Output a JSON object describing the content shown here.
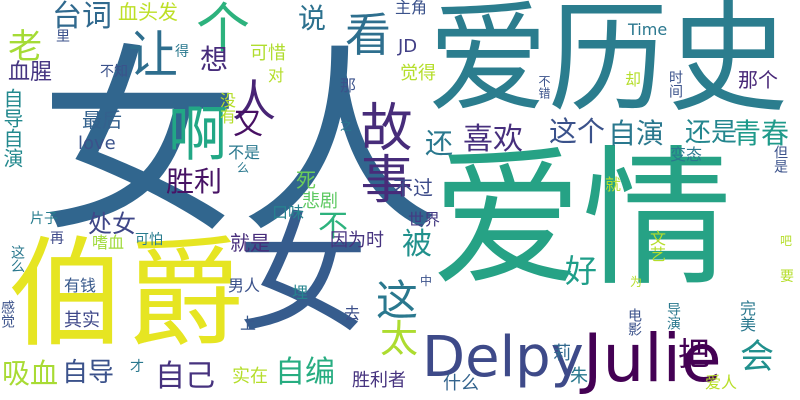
{
  "words": [
    {
      "text": "女人",
      "color": "#31668e",
      "vertical": false
    },
    {
      "text": "爱情",
      "color": "#26a285",
      "vertical": false
    },
    {
      "text": "爱历史",
      "color": "#2b7d8e",
      "vertical": false
    },
    {
      "text": "伯爵",
      "color": "#e6e522",
      "vertical": false
    },
    {
      "text": "女",
      "color": "#365c8d",
      "vertical": false
    },
    {
      "text": "Julie",
      "color": "#440154",
      "vertical": false
    },
    {
      "text": "Delpy",
      "color": "#3e4a89",
      "vertical": false
    },
    {
      "text": "啊",
      "color": "#22a785",
      "vertical": false
    },
    {
      "text": "故事",
      "color": "#472c7a",
      "vertical": true
    },
    {
      "text": "个",
      "color": "#2db27d",
      "vertical": false
    },
    {
      "text": "看",
      "color": "#2e6f8e",
      "vertical": false
    },
    {
      "text": "让",
      "color": "#2e6e8e",
      "vertical": false
    },
    {
      "text": "人",
      "color": "#482475",
      "vertical": false
    },
    {
      "text": "台词",
      "color": "#30698e",
      "vertical": false
    },
    {
      "text": "老",
      "color": "#a5db36",
      "vertical": false
    },
    {
      "text": "想",
      "color": "#472d7b",
      "vertical": false
    },
    {
      "text": "又",
      "color": "#471063",
      "vertical": false
    },
    {
      "text": "说",
      "color": "#2c718e",
      "vertical": false
    },
    {
      "text": "这个",
      "color": "#3b528b",
      "vertical": false
    },
    {
      "text": "自演",
      "color": "#2a788e",
      "vertical": false
    },
    {
      "text": "青春",
      "color": "#1f9a8a",
      "vertical": false
    },
    {
      "text": "喜欢",
      "color": "#472f7d",
      "vertical": false
    },
    {
      "text": "还",
      "color": "#2a788e",
      "vertical": false
    },
    {
      "text": "还是",
      "color": "#24868e",
      "vertical": false
    },
    {
      "text": "胜利",
      "color": "#471365",
      "vertical": false
    },
    {
      "text": "死",
      "color": "#6ccd5a",
      "vertical": false
    },
    {
      "text": "这",
      "color": "#2a788e",
      "vertical": false
    },
    {
      "text": "被",
      "color": "#21918c",
      "vertical": false
    },
    {
      "text": "好",
      "color": "#1f9e89",
      "vertical": false
    },
    {
      "text": "太",
      "color": "#addc30",
      "vertical": false
    },
    {
      "text": "把",
      "color": "#440154",
      "vertical": false
    },
    {
      "text": "会",
      "color": "#21908d",
      "vertical": false
    },
    {
      "text": "自己",
      "color": "#46327e",
      "vertical": false
    },
    {
      "text": "自编",
      "color": "#27ad81",
      "vertical": false
    },
    {
      "text": "自导",
      "color": "#3b528b",
      "vertical": false
    },
    {
      "text": "吸血",
      "color": "#a8db34",
      "vertical": false
    },
    {
      "text": "处女",
      "color": "#3f4788",
      "vertical": false
    },
    {
      "text": "不",
      "color": "#2db27d",
      "vertical": false
    },
    {
      "text": "自导自演",
      "color": "#23898e",
      "vertical": true
    },
    {
      "text": "血腥",
      "color": "#453581",
      "vertical": false
    },
    {
      "text": "最后",
      "color": "#34618d",
      "vertical": false
    },
    {
      "text": "love",
      "color": "#3b528b",
      "vertical": false
    },
    {
      "text": "血头发",
      "color": "#bddf26",
      "vertical": false
    },
    {
      "text": "可惜",
      "color": "#b0dd2f",
      "vertical": false
    },
    {
      "text": "JD",
      "color": "#424086",
      "vertical": false
    },
    {
      "text": "Time",
      "color": "#2a778e",
      "vertical": false
    },
    {
      "text": "主角",
      "color": "#3b528b",
      "vertical": false
    },
    {
      "text": "觉得",
      "color": "#b5de2b",
      "vertical": false
    },
    {
      "text": "那个",
      "color": "#482878",
      "vertical": false
    },
    {
      "text": "不过",
      "color": "#3e4c8a",
      "vertical": false
    },
    {
      "text": "悲剧",
      "color": "#5ec962",
      "vertical": false
    },
    {
      "text": "口味",
      "color": "#26828e",
      "vertical": false
    },
    {
      "text": "因为时",
      "color": "#46337f",
      "vertical": false
    },
    {
      "text": "世界",
      "color": "#443a83",
      "vertical": false
    },
    {
      "text": "就是",
      "color": "#472d7b",
      "vertical": false
    },
    {
      "text": "可怕",
      "color": "#287c8e",
      "vertical": false
    },
    {
      "text": "嗜血",
      "color": "#9fda3a",
      "vertical": false
    },
    {
      "text": "再",
      "color": "#3e4989",
      "vertical": false
    },
    {
      "text": "有钱",
      "color": "#38598c",
      "vertical": false
    },
    {
      "text": "其实",
      "color": "#3f4889",
      "vertical": false
    },
    {
      "text": "男人",
      "color": "#3b528b",
      "vertical": false
    },
    {
      "text": "埋",
      "color": "#25848e",
      "vertical": false
    },
    {
      "text": "上",
      "color": "#38588c",
      "vertical": false
    },
    {
      "text": "去",
      "color": "#3c4f8a",
      "vertical": false
    },
    {
      "text": "实在",
      "color": "#b5de2b",
      "vertical": false
    },
    {
      "text": "什么",
      "color": "#33638d",
      "vertical": false
    },
    {
      "text": "胜利者",
      "color": "#46337f",
      "vertical": false
    },
    {
      "text": "莉",
      "color": "#31688e",
      "vertical": false
    },
    {
      "text": "朱",
      "color": "#2a788e",
      "vertical": false
    },
    {
      "text": "爱人",
      "color": "#b8de29",
      "vertical": false
    },
    {
      "text": "才",
      "color": "#2a788e",
      "vertical": false
    },
    {
      "text": "片子",
      "color": "#287d8e",
      "vertical": false
    },
    {
      "text": "得",
      "color": "#2a788e",
      "vertical": false
    },
    {
      "text": "对",
      "color": "#b5de2b",
      "vertical": false
    },
    {
      "text": "不知",
      "color": "#3b528b",
      "vertical": false
    },
    {
      "text": "里",
      "color": "#3b528b",
      "vertical": false
    },
    {
      "text": "那",
      "color": "#3b528b",
      "vertical": false
    },
    {
      "text": "却",
      "color": "#b5de2b",
      "vertical": false
    },
    {
      "text": "就",
      "color": "#b5de2b",
      "vertical": false
    },
    {
      "text": "之",
      "color": "#2a788e",
      "vertical": false
    },
    {
      "text": "么",
      "color": "#2a788e",
      "vertical": false
    },
    {
      "text": "中",
      "color": "#3b528b",
      "vertical": false
    },
    {
      "text": "为",
      "color": "#b5de2b",
      "vertical": false
    },
    {
      "text": "没有",
      "color": "#b5de2b",
      "vertical": true
    },
    {
      "text": "不是",
      "color": "#2a788e",
      "vertical": false
    },
    {
      "text": "不错",
      "color": "#3b528b",
      "vertical": true
    },
    {
      "text": "时间",
      "color": "#3b528b",
      "vertical": true
    },
    {
      "text": "变态",
      "color": "#2a788e",
      "vertical": false
    },
    {
      "text": "但是",
      "color": "#3b528b",
      "vertical": true
    },
    {
      "text": "文艺",
      "color": "#b5de2b",
      "vertical": true
    },
    {
      "text": "电影",
      "color": "#3b528b",
      "vertical": true
    },
    {
      "text": "导演",
      "color": "#2a788e",
      "vertical": true
    },
    {
      "text": "完美",
      "color": "#2a788e",
      "vertical": true
    },
    {
      "text": "吧",
      "color": "#b5de2b",
      "vertical": false
    },
    {
      "text": "要",
      "color": "#b5de2b",
      "vertical": false
    },
    {
      "text": "这么",
      "color": "#2a788e",
      "vertical": true
    },
    {
      "text": "感觉",
      "color": "#3b528b",
      "vertical": true
    }
  ]
}
